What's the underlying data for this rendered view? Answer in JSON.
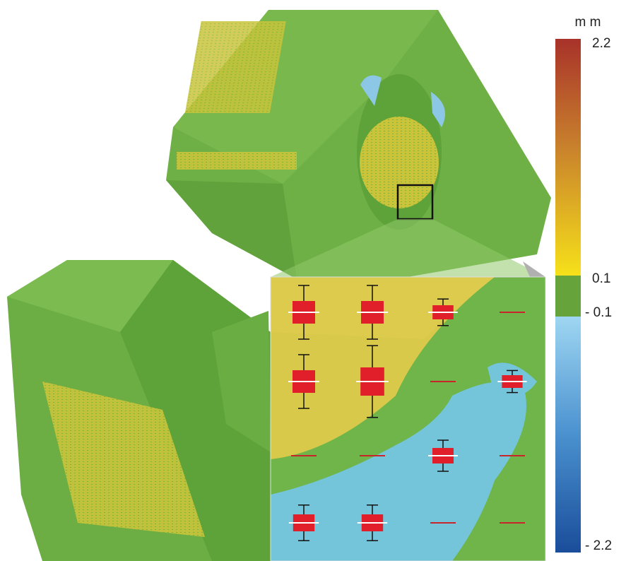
{
  "colorbar": {
    "unit": "m m",
    "ticks": [
      {
        "value": 2.2,
        "label": "2.2"
      },
      {
        "value": 0.1,
        "label": "0.1"
      },
      {
        "value": -0.1,
        "label": "- 0.1"
      },
      {
        "value": -2.2,
        "label": "- 2.2"
      }
    ]
  }
}
